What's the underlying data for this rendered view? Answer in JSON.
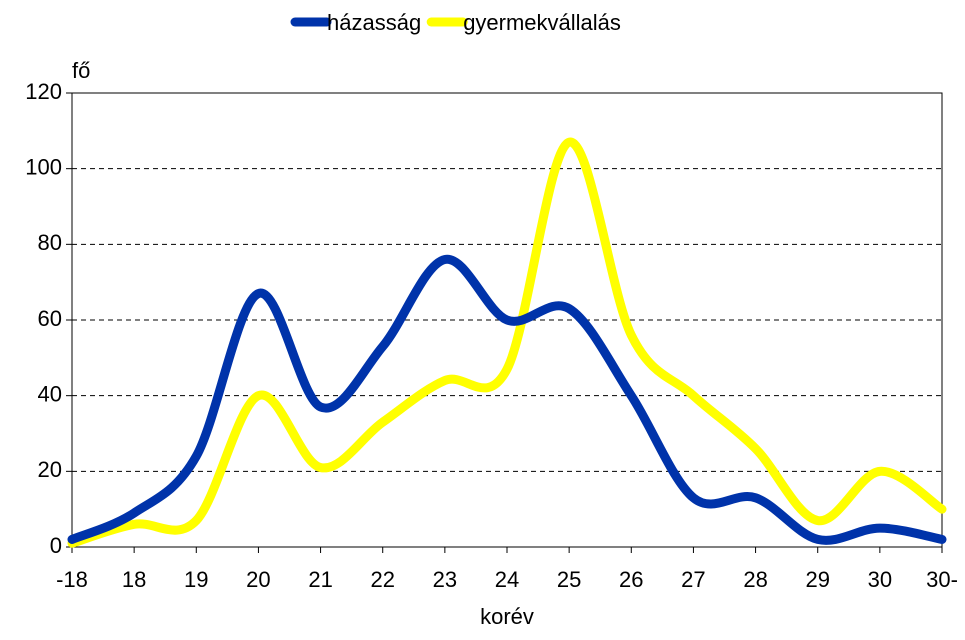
{
  "chart_data": {
    "type": "line",
    "y_label": "fő",
    "x_label": "korév",
    "categories": [
      "-18",
      "18",
      "19",
      "20",
      "21",
      "22",
      "23",
      "24",
      "25",
      "26",
      "27",
      "28",
      "29",
      "30",
      "30-"
    ],
    "series": [
      {
        "name": "házasság",
        "color": "#0033aa",
        "values": [
          2,
          9,
          24,
          67,
          37,
          53,
          76,
          60,
          63,
          40,
          13,
          13,
          2,
          5,
          2
        ]
      },
      {
        "name": "gyermekvállalás",
        "color": "#ffff00",
        "values": [
          1,
          6,
          7,
          40,
          21,
          33,
          44,
          47,
          107,
          56,
          40,
          26,
          7,
          20,
          10
        ]
      }
    ],
    "ylim": [
      0,
      120
    ],
    "yticks": [
      0,
      20,
      40,
      60,
      80,
      100,
      120
    ],
    "grid": true,
    "legend": "top"
  }
}
